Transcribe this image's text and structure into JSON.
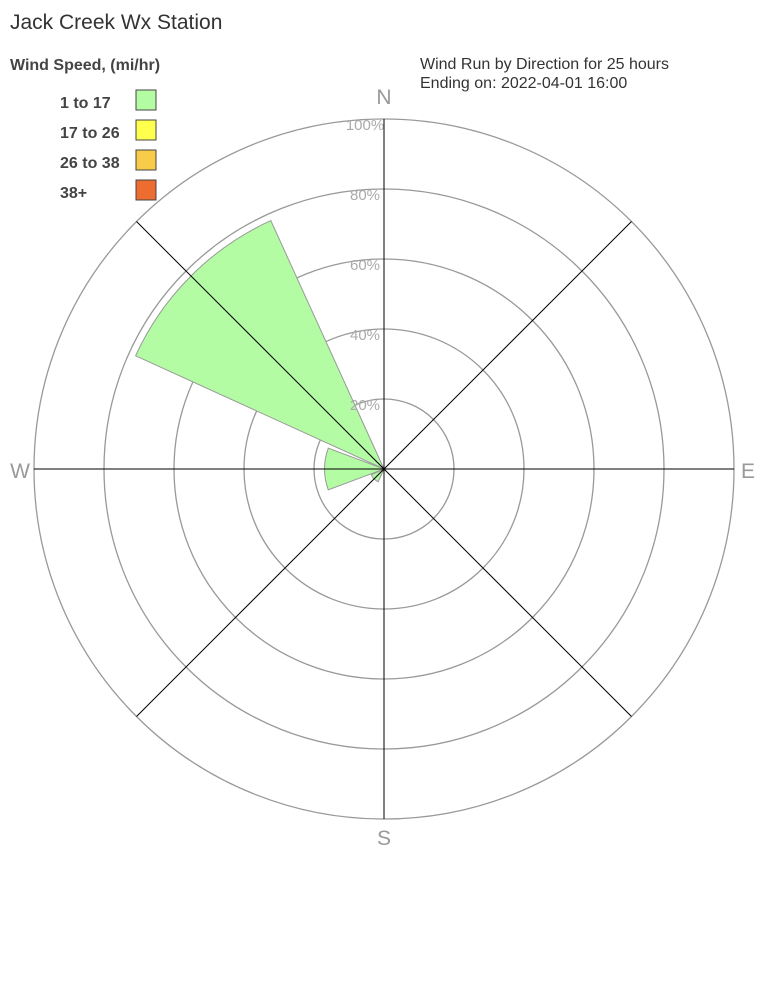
{
  "title": "Jack Creek Wx Station",
  "chart_data": {
    "type": "windrose",
    "title": "Wind Run by Direction for 25 hours",
    "subtitle": "Ending on: 2022-04-01 16:00",
    "legend_title": "Wind Speed, (mi/hr)",
    "legend_placement": "top-left",
    "legend": [
      {
        "label": "1 to 17",
        "color": "#b3fca3"
      },
      {
        "label": "17 to 26",
        "color": "#ffff4d"
      },
      {
        "label": "26 to 38",
        "color": "#f8cc48"
      },
      {
        "label": "38+",
        "color": "#ec6d2f"
      }
    ],
    "directions": [
      "N",
      "E",
      "S",
      "W"
    ],
    "ring_labels": [
      "20%",
      "40%",
      "60%",
      "80%",
      "100%"
    ],
    "rlim": [
      0,
      100
    ],
    "series": [
      {
        "bin": "1 to 17",
        "values": [
          {
            "direction": "W",
            "bearing": 270,
            "percent": 17
          },
          {
            "direction": "SW",
            "bearing": 225,
            "percent": 4
          },
          {
            "direction": "NW",
            "bearing": 315,
            "percent": 78
          }
        ]
      }
    ]
  }
}
